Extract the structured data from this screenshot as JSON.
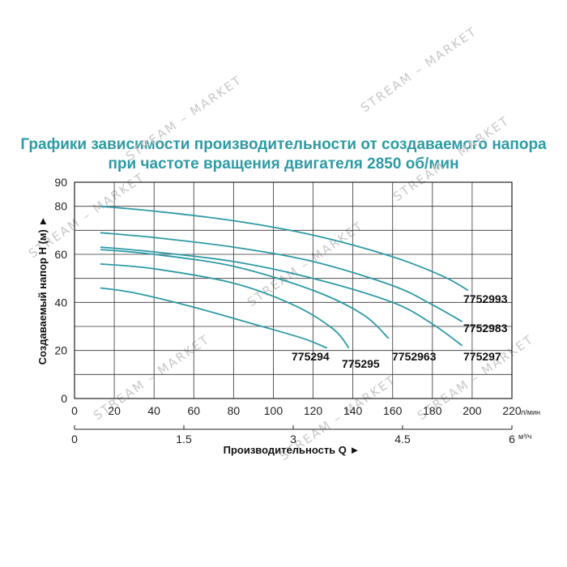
{
  "chart_data": {
    "type": "line",
    "title": "Графики зависимости производительности от создаваемого напора",
    "subtitle": "при частоте вращения двигателя 2850 об/мин",
    "xlabel": "Производительность Q ►",
    "ylabel": "Создаваемый напор Н (м) ►",
    "x_unit": "л/мин",
    "x2_unit": "м³/ч",
    "xlim": [
      0,
      220
    ],
    "ylim": [
      0,
      90
    ],
    "x_ticks": [
      "0",
      "20",
      "40",
      "60",
      "80",
      "100",
      "120",
      "140",
      "160",
      "180",
      "200",
      "220"
    ],
    "x2_ticks": [
      "0",
      "1.5",
      "3",
      "4.5",
      "6"
    ],
    "y_ticks": [
      "0",
      "20",
      "40",
      "60",
      "80",
      "90"
    ],
    "grid": true,
    "line_color": "#2e9aa5",
    "series": [
      {
        "name": "7752993",
        "x": [
          13,
          40,
          80,
          120,
          160,
          185,
          198
        ],
        "y": [
          80,
          78,
          74,
          68,
          59,
          51,
          45
        ]
      },
      {
        "name": "7752983",
        "x": [
          13,
          40,
          80,
          120,
          160,
          180,
          195
        ],
        "y": [
          69,
          67,
          63,
          57,
          47,
          39,
          32
        ]
      },
      {
        "name": "775297",
        "x": [
          13,
          40,
          80,
          120,
          160,
          180,
          195
        ],
        "y": [
          63,
          61,
          57,
          50,
          40,
          31,
          22
        ]
      },
      {
        "name": "7752963",
        "x": [
          13,
          40,
          80,
          120,
          145,
          158
        ],
        "y": [
          62,
          60,
          55,
          45,
          35,
          25
        ]
      },
      {
        "name": "775295",
        "x": [
          13,
          40,
          80,
          110,
          130,
          138
        ],
        "y": [
          56,
          54,
          48,
          39,
          29,
          21
        ]
      },
      {
        "name": "775294",
        "x": [
          13,
          30,
          60,
          90,
          115,
          127
        ],
        "y": [
          46,
          44,
          38,
          31,
          25,
          21
        ]
      }
    ]
  },
  "watermarks": [
    "STREAM – MARKET",
    "STREAM – MARKET",
    "STREAM – MARKET",
    "STREAM – MARKET",
    "STREAM – MARKET",
    "STREAM – MARKET",
    "STREAM – MARKET",
    "STREAM – MARKET"
  ]
}
